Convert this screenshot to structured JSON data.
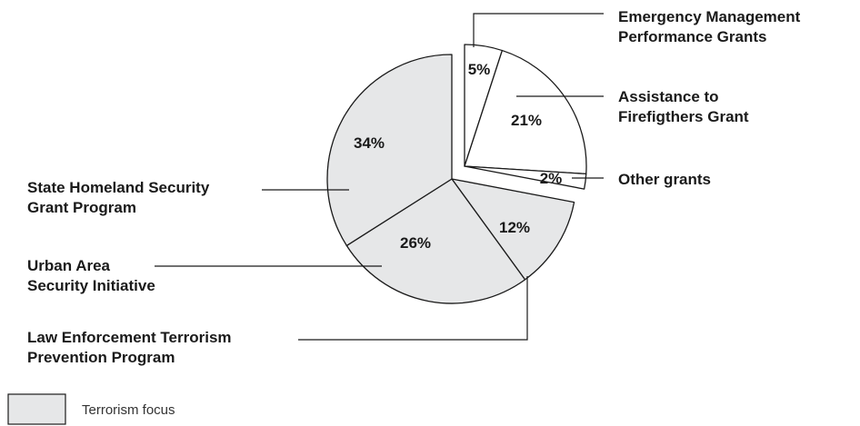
{
  "chart_data": {
    "type": "pie",
    "slices": [
      {
        "label": [
          "Emergency Management",
          "Performance Grants"
        ],
        "value": 5,
        "value_label": "5%",
        "terrorism_focus": false
      },
      {
        "label": [
          "Assistance to",
          "Firefigthers Grant"
        ],
        "value": 21,
        "value_label": "21%",
        "terrorism_focus": false
      },
      {
        "label": [
          "Other grants"
        ],
        "value": 2,
        "value_label": "2%",
        "terrorism_focus": false
      },
      {
        "label": [
          "Law Enforcement Terrorism",
          "Prevention Program"
        ],
        "value": 12,
        "value_label": "12%",
        "terrorism_focus": true
      },
      {
        "label": [
          "Urban Area",
          "Security Initiative"
        ],
        "value": 26,
        "value_label": "26%",
        "terrorism_focus": true
      },
      {
        "label": [
          "State Homeland Security",
          "Grant Program"
        ],
        "value": 34,
        "value_label": "34%",
        "terrorism_focus": true
      }
    ],
    "exploded": "non-terrorism slices",
    "legend": {
      "label": "Terrorism focus",
      "position": "bottom-left"
    },
    "colors": {
      "terrorism": "#e6e7e8",
      "other": "#ffffff",
      "stroke": "#1a1a1a"
    }
  }
}
